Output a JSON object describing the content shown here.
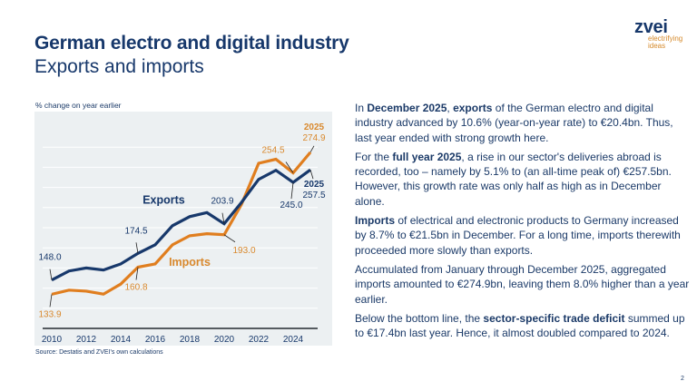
{
  "header": {
    "title": "German electro and digital industry",
    "subtitle": "Exports and imports"
  },
  "logo": {
    "word": "zvei",
    "tagline_1": "electrifying",
    "tagline_2": "ideas"
  },
  "colors": {
    "navy": "#17386b",
    "orange": "#e07e1f",
    "orange_text": "#d9892e",
    "chart_bg": "#ecf0f2",
    "grid": "#ffffff",
    "axis": "#555b60"
  },
  "chart_data": {
    "type": "line",
    "title": "",
    "ylabel": "% change on year earlier",
    "xlabel": "",
    "x": [
      2010,
      2011,
      2012,
      2013,
      2014,
      2015,
      2016,
      2017,
      2018,
      2019,
      2020,
      2021,
      2022,
      2023,
      2024,
      2025
    ],
    "xticks": [
      "2010",
      "2012",
      "2014",
      "2016",
      "2018",
      "2020",
      "2022",
      "2024"
    ],
    "ylim": [
      100,
      280
    ],
    "grid": true,
    "grid_step": 20,
    "series": [
      {
        "name": "Exports",
        "color": "#17386b",
        "values": [
          148.0,
          157,
          160,
          158,
          164,
          174.5,
          183,
          202,
          211,
          215,
          203.9,
          225,
          248,
          257,
          245.0,
          257.5
        ]
      },
      {
        "name": "Imports",
        "color": "#e07e1f",
        "values": [
          133.9,
          138,
          137,
          134,
          144,
          160.8,
          164,
          183,
          192,
          194,
          193.0,
          223,
          264,
          268,
          254.5,
          274.9
        ]
      }
    ],
    "series_labels": [
      {
        "series": "Exports",
        "text": "Exports",
        "anchor_x": 2016.5,
        "anchor_y": 224
      },
      {
        "series": "Imports",
        "text": "Imports",
        "anchor_x": 2018.0,
        "anchor_y": 162
      }
    ],
    "annotations": [
      {
        "series": "Exports",
        "x": 2010,
        "value": 148.0,
        "text": "148.0",
        "pos": "above"
      },
      {
        "series": "Exports",
        "x": 2015,
        "value": 174.5,
        "text": "174.5",
        "pos": "above"
      },
      {
        "series": "Exports",
        "x": 2020,
        "value": 203.9,
        "text": "203.9",
        "pos": "above"
      },
      {
        "series": "Exports",
        "x": 2024,
        "value": 245.0,
        "text": "245.0",
        "pos": "below"
      },
      {
        "series": "Exports",
        "x": 2025,
        "value": 257.5,
        "text": "257.5",
        "pos": "below-right",
        "year_label": "2025"
      },
      {
        "series": "Imports",
        "x": 2010,
        "value": 133.9,
        "text": "133.9",
        "pos": "below"
      },
      {
        "series": "Imports",
        "x": 2015,
        "value": 160.8,
        "text": "160.8",
        "pos": "below"
      },
      {
        "series": "Imports",
        "x": 2020,
        "value": 193.0,
        "text": "193.0",
        "pos": "below-right"
      },
      {
        "series": "Imports",
        "x": 2024,
        "value": 254.5,
        "text": "254.5",
        "pos": "above-left"
      },
      {
        "series": "Imports",
        "x": 2025,
        "value": 274.9,
        "text": "274.9",
        "pos": "above",
        "year_label": "2025"
      }
    ],
    "source": "Source: Destatis and ZVEI's own calculations"
  },
  "body_text": {
    "p1": {
      "t1": "In ",
      "b1": "December 2025",
      "t2": ", ",
      "b2": "exports",
      "t3": " of the German electro and digital industry advanced by 10.6% (year-on-year rate) to €20.4bn. Thus, last year ended with strong growth here."
    },
    "p2": {
      "t1": "For the ",
      "b1": "full year 2025",
      "t2": ", a rise in our sector's deliveries abroad is recorded, too – namely by 5.1% to (an all-time peak of) €257.5bn. However, this growth rate was only half as high as in December alone."
    },
    "p3": {
      "b1": "Imports",
      "t1": " of electrical and electronic products to Germany increased by 8.7% to €21.5bn in December. For a long time, imports therewith proceeded more slowly than exports."
    },
    "p4": {
      "t1": "Accumulated from January through December 2025, aggregated imports amounted to €274.9bn, leaving them 8.0% higher than a year earlier."
    },
    "p5": {
      "t1": "Below the bottom line, the ",
      "b1": "sector-specific trade deficit",
      "t2": " summed up to €17.4bn last year. Hence, it almost doubled compared to 2024."
    }
  },
  "footer": {
    "page_number": "2"
  }
}
